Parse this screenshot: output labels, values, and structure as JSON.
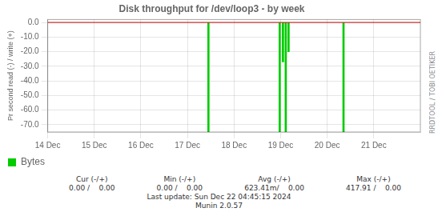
{
  "chart_data": {
    "type": "bar",
    "title": "Disk throughput for /dev/loop3 - by week",
    "y_label": "Pr second read (-) / write (+)",
    "x": [
      16.95,
      18.48,
      18.55,
      18.61,
      18.67,
      19.85
    ],
    "series": [
      {
        "name": "Bytes",
        "color": "#00cc00",
        "values": [
          [
            -75,
            0
          ],
          [
            -75,
            0
          ],
          [
            -27,
            0
          ],
          [
            -75,
            0
          ],
          [
            -20,
            0
          ],
          [
            -75,
            0
          ]
        ]
      }
    ],
    "xlim": [
      13.5,
      21.5
    ],
    "xticks": [
      {
        "value": 13.5,
        "label": "14 Dec"
      },
      {
        "value": 14.5,
        "label": "15 Dec"
      },
      {
        "value": 15.5,
        "label": "16 Dec"
      },
      {
        "value": 16.5,
        "label": "17 Dec"
      },
      {
        "value": 17.5,
        "label": "18 Dec"
      },
      {
        "value": 18.5,
        "label": "19 Dec"
      },
      {
        "value": 19.5,
        "label": "20 Dec"
      },
      {
        "value": 20.5,
        "label": "21 Dec"
      }
    ],
    "ylim": [
      -75,
      2
    ],
    "yticks": [
      {
        "value": 0,
        "label": "0.0"
      },
      {
        "value": -10,
        "label": "-10.0"
      },
      {
        "value": -20,
        "label": "-20.0"
      },
      {
        "value": -30,
        "label": "-30.0"
      },
      {
        "value": -40,
        "label": "-40.0"
      },
      {
        "value": -50,
        "label": "-50.0"
      },
      {
        "value": -60,
        "label": "-60.0"
      },
      {
        "value": -70,
        "label": "-70.0"
      }
    ],
    "grid": true,
    "legend": "bottom left",
    "annotations": [
      {
        "type": "hline",
        "y": 0,
        "color": "#cc0000"
      },
      {
        "type": "side_text",
        "text": "RRDTOOL / TOBI OETIKER"
      },
      {
        "type": "footer_columns",
        "columns": [
          {
            "label": "Cur (-/+)",
            "value": "0.00 /    0.00"
          },
          {
            "label": "Min (-/+)",
            "value": "0.00 /    0.00"
          },
          {
            "label": "Avg (-/+)",
            "value": "623.41m/    0.00"
          },
          {
            "label": "Max (-/+)",
            "value": "417.91 /    0.00"
          }
        ]
      },
      {
        "type": "footer_line",
        "text": "Last update: Sun Dec 22 04:45:15 2024"
      },
      {
        "type": "footer_line",
        "text": "Munin 2.0.57"
      }
    ]
  }
}
